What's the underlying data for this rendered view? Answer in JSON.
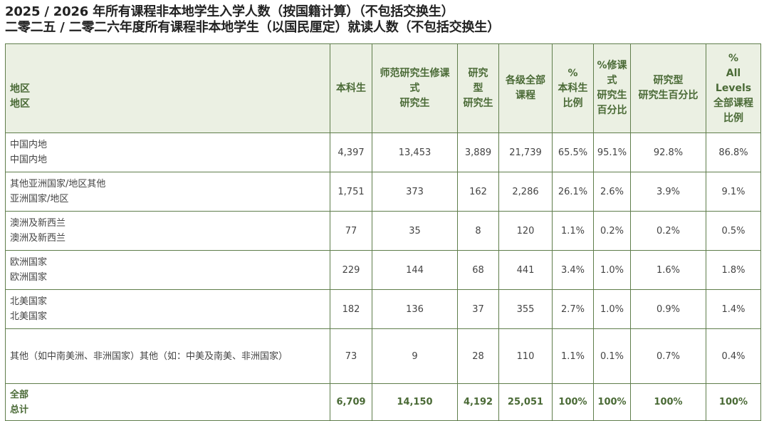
{
  "heading": {
    "line1": "2025 / 2026 年所有课程非本地学生入学人数（按国籍计算）（不包括交换生）",
    "line2": "二零二五 / 二零二六年度所有课程非本地学生（以国民厘定）就读人数（不包括交换生）"
  },
  "columns": [
    [
      "地区",
      "地区"
    ],
    [
      "本科生"
    ],
    [
      "师范研究生修课",
      "式",
      "研究生"
    ],
    [
      "研究",
      "型",
      "研究生"
    ],
    [
      "各级全部",
      "课程"
    ],
    [
      "%",
      "本科生",
      "比例"
    ],
    [
      "%修课",
      "式",
      "研究生",
      "百分比"
    ],
    [
      "研究型",
      "研究生百分比"
    ],
    [
      "%",
      "All Levels",
      "全部课程",
      "比例"
    ]
  ],
  "rows": [
    {
      "region": [
        "中国内地",
        "中国内地"
      ],
      "values": [
        "4,397",
        "13,453",
        "3,889",
        "21,739",
        "65.5%",
        "95.1%",
        "92.8%",
        "86.8%"
      ]
    },
    {
      "region": [
        "其他亚洲国家/地区其他",
        "亚洲国家/地区"
      ],
      "values": [
        "1,751",
        "373",
        "162",
        "2,286",
        "26.1%",
        "2.6%",
        "3.9%",
        "9.1%"
      ]
    },
    {
      "region": [
        "澳洲及新西兰",
        "澳洲及新西兰"
      ],
      "values": [
        "77",
        "35",
        "8",
        "120",
        "1.1%",
        "0.2%",
        "0.2%",
        "0.5%"
      ]
    },
    {
      "region": [
        "欧洲国家",
        "欧洲国家"
      ],
      "values": [
        "229",
        "144",
        "68",
        "441",
        "3.4%",
        "1.0%",
        "1.6%",
        "1.8%"
      ]
    },
    {
      "region": [
        "北美国家",
        "北美国家"
      ],
      "values": [
        "182",
        "136",
        "37",
        "355",
        "2.7%",
        "1.0%",
        "0.9%",
        "1.4%"
      ]
    },
    {
      "region": [
        "其他（如中南美洲、非洲国家）其他（如：中美及南美、非洲国家）"
      ],
      "values": [
        "73",
        "9",
        "28",
        "110",
        "1.1%",
        "0.1%",
        "0.7%",
        "0.4%"
      ]
    }
  ],
  "total": {
    "region": [
      "全部",
      "总计"
    ],
    "values": [
      "6,709",
      "14,150",
      "4,192",
      "25,051",
      "100%",
      "100%",
      "100%",
      "100%"
    ]
  }
}
